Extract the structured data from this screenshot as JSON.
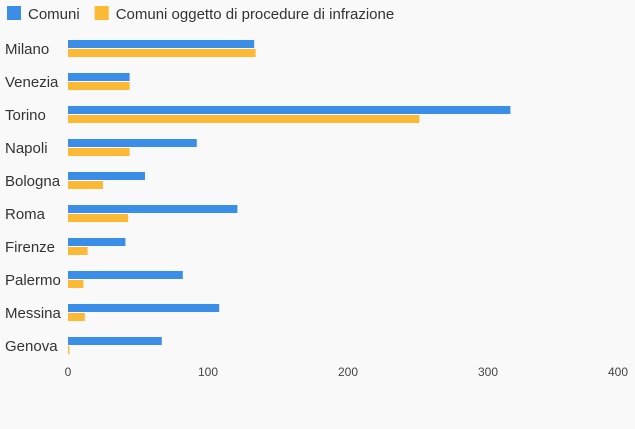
{
  "chart_data": {
    "type": "bar",
    "orientation": "horizontal",
    "title": "",
    "xlabel": "",
    "ylabel": "",
    "categories": [
      "Milano",
      "Venezia",
      "Torino",
      "Napoli",
      "Bologna",
      "Roma",
      "Firenze",
      "Palermo",
      "Messina",
      "Genova"
    ],
    "series": [
      {
        "name": "Comuni",
        "color": "#3b8ee8",
        "values": [
          133,
          44,
          316,
          92,
          55,
          121,
          41,
          82,
          108,
          67
        ]
      },
      {
        "name": "Comuni oggetto di procedure di infrazione",
        "color": "#fbb934",
        "values": [
          134,
          44,
          251,
          44,
          25,
          43,
          14,
          11,
          12,
          1
        ]
      }
    ],
    "xlim": [
      0,
      400
    ],
    "xticks": [
      0,
      100,
      200,
      300,
      400
    ],
    "legend": "top-left",
    "grid": false
  }
}
